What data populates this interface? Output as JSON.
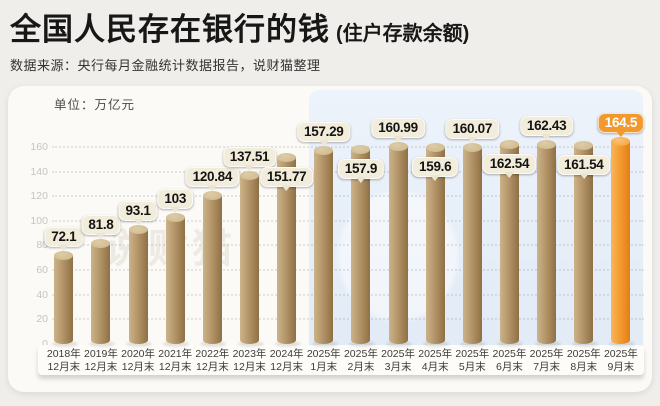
{
  "header": {
    "title": "全国人民存在银行的钱",
    "title_note": "(住户存款余额)",
    "source": "数据来源：央行每月金融统计数据报告，说财猫整理"
  },
  "chart_data": {
    "type": "bar",
    "title": "全国人民存在银行的钱 (住户存款余额)",
    "unit_label": "单位：万亿元",
    "ylabel": "万亿元",
    "categories": [
      "2018年\n12月末",
      "2019年\n12月末",
      "2020年\n12月末",
      "2021年\n12月末",
      "2022年\n12月末",
      "2023年\n12月末",
      "2024年\n12月末",
      "2025年\n1月末",
      "2025年\n2月末",
      "2025年\n3月末",
      "2025年\n4月末",
      "2025年\n5月末",
      "2025年\n6月末",
      "2025年\n7月末",
      "2025年\n8月末",
      "2025年\n9月末"
    ],
    "values": [
      72.1,
      81.8,
      93.1,
      103,
      120.84,
      137.51,
      151.77,
      157.29,
      157.9,
      160.99,
      159.6,
      160.07,
      162.54,
      162.43,
      161.54,
      164.5
    ],
    "value_labels": [
      "72.1",
      "81.8",
      "93.1",
      "103",
      "120.84",
      "137.51",
      "151.77",
      "157.29",
      "157.9",
      "160.99",
      "159.6",
      "160.07",
      "162.54",
      "162.43",
      "161.54",
      "164.5"
    ],
    "label_position": [
      "above",
      "above",
      "above",
      "above",
      "above",
      "above",
      "low",
      "above",
      "low",
      "above",
      "low",
      "above",
      "low",
      "above",
      "low",
      "above"
    ],
    "highlight_index": 15,
    "highlight_region_start_index": 7,
    "ylim": [
      0,
      160
    ],
    "yticks": [
      0,
      20,
      40,
      60,
      80,
      100,
      120,
      140,
      160
    ],
    "grid": "dotted-horizontal",
    "legend": "none",
    "watermark": "说财猫",
    "colors": {
      "bar": "#b3946a",
      "bar_top": "#d2bd93",
      "highlight_bar": "#f49f33",
      "callout_bg": "#f2ecdb",
      "callout_text": "#141414",
      "highlight_callout_bg": "#f1992d",
      "highlight_callout_text": "#ffffff",
      "highlight_region_bg": "#e7eef8",
      "card_bg": "#fbfaf7",
      "page_bg": "#efeeeb",
      "tick_text": "#c7c4bd"
    }
  }
}
